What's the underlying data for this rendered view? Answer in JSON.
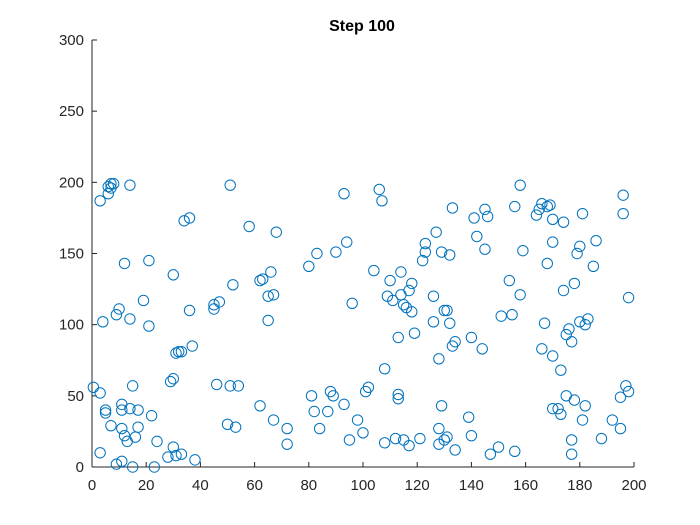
{
  "chart_data": {
    "type": "scatter",
    "title": "Step 100",
    "xlabel": "",
    "ylabel": "",
    "xlim": [
      0,
      200
    ],
    "ylim": [
      0,
      300
    ],
    "xticks": [
      0,
      20,
      40,
      60,
      80,
      100,
      120,
      140,
      160,
      180,
      200
    ],
    "yticks": [
      0,
      50,
      100,
      150,
      200,
      250,
      300
    ],
    "grid": false,
    "legend": "none",
    "marker": "open-circle",
    "marker_color": "#0072BD",
    "series": [
      {
        "points": [
          [
            0.5,
            56
          ],
          [
            3,
            10
          ],
          [
            3,
            52
          ],
          [
            3,
            187
          ],
          [
            4,
            102
          ],
          [
            5,
            38
          ],
          [
            5,
            40
          ],
          [
            6,
            192
          ],
          [
            6,
            197
          ],
          [
            7,
            196
          ],
          [
            7,
            199
          ],
          [
            8,
            199
          ],
          [
            7,
            29
          ],
          [
            9,
            2
          ],
          [
            9,
            107
          ],
          [
            10,
            111
          ],
          [
            11,
            40
          ],
          [
            11,
            44
          ],
          [
            11,
            4
          ],
          [
            11,
            27
          ],
          [
            12,
            22
          ],
          [
            12,
            143
          ],
          [
            13,
            18
          ],
          [
            14,
            104
          ],
          [
            14,
            198
          ],
          [
            14,
            41
          ],
          [
            15,
            57
          ],
          [
            15,
            0
          ],
          [
            16,
            21
          ],
          [
            17,
            28
          ],
          [
            17,
            40
          ],
          [
            19,
            117
          ],
          [
            21,
            145
          ],
          [
            21,
            99
          ],
          [
            22,
            36
          ],
          [
            23,
            0
          ],
          [
            24,
            18
          ],
          [
            28,
            7
          ],
          [
            29,
            60
          ],
          [
            30,
            62
          ],
          [
            30,
            135
          ],
          [
            30,
            14
          ],
          [
            31,
            80
          ],
          [
            31,
            8
          ],
          [
            32,
            81
          ],
          [
            33,
            81
          ],
          [
            33,
            9
          ],
          [
            34,
            173
          ],
          [
            36,
            175
          ],
          [
            36,
            110
          ],
          [
            37,
            85
          ],
          [
            38,
            5
          ],
          [
            45,
            111
          ],
          [
            45,
            114
          ],
          [
            46,
            58
          ],
          [
            47,
            116
          ],
          [
            50,
            30
          ],
          [
            51,
            57
          ],
          [
            51,
            198
          ],
          [
            52,
            128
          ],
          [
            53,
            28
          ],
          [
            54,
            57
          ],
          [
            58,
            169
          ],
          [
            62,
            43
          ],
          [
            62,
            131
          ],
          [
            63,
            132
          ],
          [
            65,
            103
          ],
          [
            65,
            120
          ],
          [
            66,
            137
          ],
          [
            67,
            121
          ],
          [
            67,
            33
          ],
          [
            68,
            165
          ],
          [
            72,
            27
          ],
          [
            72,
            16
          ],
          [
            80,
            141
          ],
          [
            81,
            50
          ],
          [
            82,
            39
          ],
          [
            83,
            150
          ],
          [
            84,
            27
          ],
          [
            87,
            39
          ],
          [
            88,
            53
          ],
          [
            89,
            50
          ],
          [
            90,
            151
          ],
          [
            93,
            44
          ],
          [
            93,
            192
          ],
          [
            94,
            158
          ],
          [
            95,
            19
          ],
          [
            96,
            115
          ],
          [
            98,
            33
          ],
          [
            100,
            24
          ],
          [
            101,
            53
          ],
          [
            102,
            56
          ],
          [
            104,
            138
          ],
          [
            106,
            195
          ],
          [
            107,
            187
          ],
          [
            108,
            17
          ],
          [
            108,
            69
          ],
          [
            109,
            120
          ],
          [
            110,
            131
          ],
          [
            111,
            117
          ],
          [
            112,
            20
          ],
          [
            113,
            48
          ],
          [
            113,
            51
          ],
          [
            113,
            91
          ],
          [
            114,
            121
          ],
          [
            114,
            137
          ],
          [
            115,
            19
          ],
          [
            115,
            114
          ],
          [
            116,
            112
          ],
          [
            117,
            15
          ],
          [
            117,
            124
          ],
          [
            118,
            129
          ],
          [
            118,
            109
          ],
          [
            119,
            94
          ],
          [
            121,
            20
          ],
          [
            122,
            145
          ],
          [
            123,
            151
          ],
          [
            123,
            157
          ],
          [
            126,
            120
          ],
          [
            126,
            102
          ],
          [
            127,
            165
          ],
          [
            128,
            76
          ],
          [
            128,
            27
          ],
          [
            128,
            16
          ],
          [
            129,
            151
          ],
          [
            130,
            110
          ],
          [
            129,
            43
          ],
          [
            130,
            19
          ],
          [
            131,
            110
          ],
          [
            131,
            21
          ],
          [
            132,
            101
          ],
          [
            132,
            149
          ],
          [
            133,
            85
          ],
          [
            133,
            182
          ],
          [
            134,
            88
          ],
          [
            134,
            12
          ],
          [
            139,
            35
          ],
          [
            140,
            22
          ],
          [
            140,
            91
          ],
          [
            141,
            175
          ],
          [
            142,
            162
          ],
          [
            144,
            83
          ],
          [
            145,
            153
          ],
          [
            145,
            181
          ],
          [
            146,
            176
          ],
          [
            147,
            9
          ],
          [
            150,
            14
          ],
          [
            151,
            106
          ],
          [
            154,
            131
          ],
          [
            155,
            107
          ],
          [
            156,
            11
          ],
          [
            156,
            183
          ],
          [
            158,
            198
          ],
          [
            158,
            121
          ],
          [
            159,
            152
          ],
          [
            164,
            177
          ],
          [
            165,
            181
          ],
          [
            166,
            185
          ],
          [
            166,
            83
          ],
          [
            167,
            101
          ],
          [
            168,
            183
          ],
          [
            168,
            143
          ],
          [
            169,
            184
          ],
          [
            170,
            41
          ],
          [
            170,
            78
          ],
          [
            170,
            174
          ],
          [
            170,
            158
          ],
          [
            172,
            41
          ],
          [
            173,
            68
          ],
          [
            173,
            37
          ],
          [
            174,
            172
          ],
          [
            174,
            124
          ],
          [
            175,
            93
          ],
          [
            175,
            50
          ],
          [
            176,
            97
          ],
          [
            177,
            88
          ],
          [
            177,
            19
          ],
          [
            177,
            9
          ],
          [
            178,
            129
          ],
          [
            178,
            47
          ],
          [
            179,
            150
          ],
          [
            180,
            102
          ],
          [
            180,
            155
          ],
          [
            181,
            178
          ],
          [
            181,
            33
          ],
          [
            182,
            100
          ],
          [
            182,
            43
          ],
          [
            183,
            104
          ],
          [
            185,
            141
          ],
          [
            186,
            159
          ],
          [
            188,
            20
          ],
          [
            192,
            33
          ],
          [
            195,
            27
          ],
          [
            195,
            49
          ],
          [
            196,
            178
          ],
          [
            196,
            191
          ],
          [
            197,
            57
          ],
          [
            198,
            53
          ],
          [
            198,
            119
          ]
        ]
      }
    ]
  }
}
